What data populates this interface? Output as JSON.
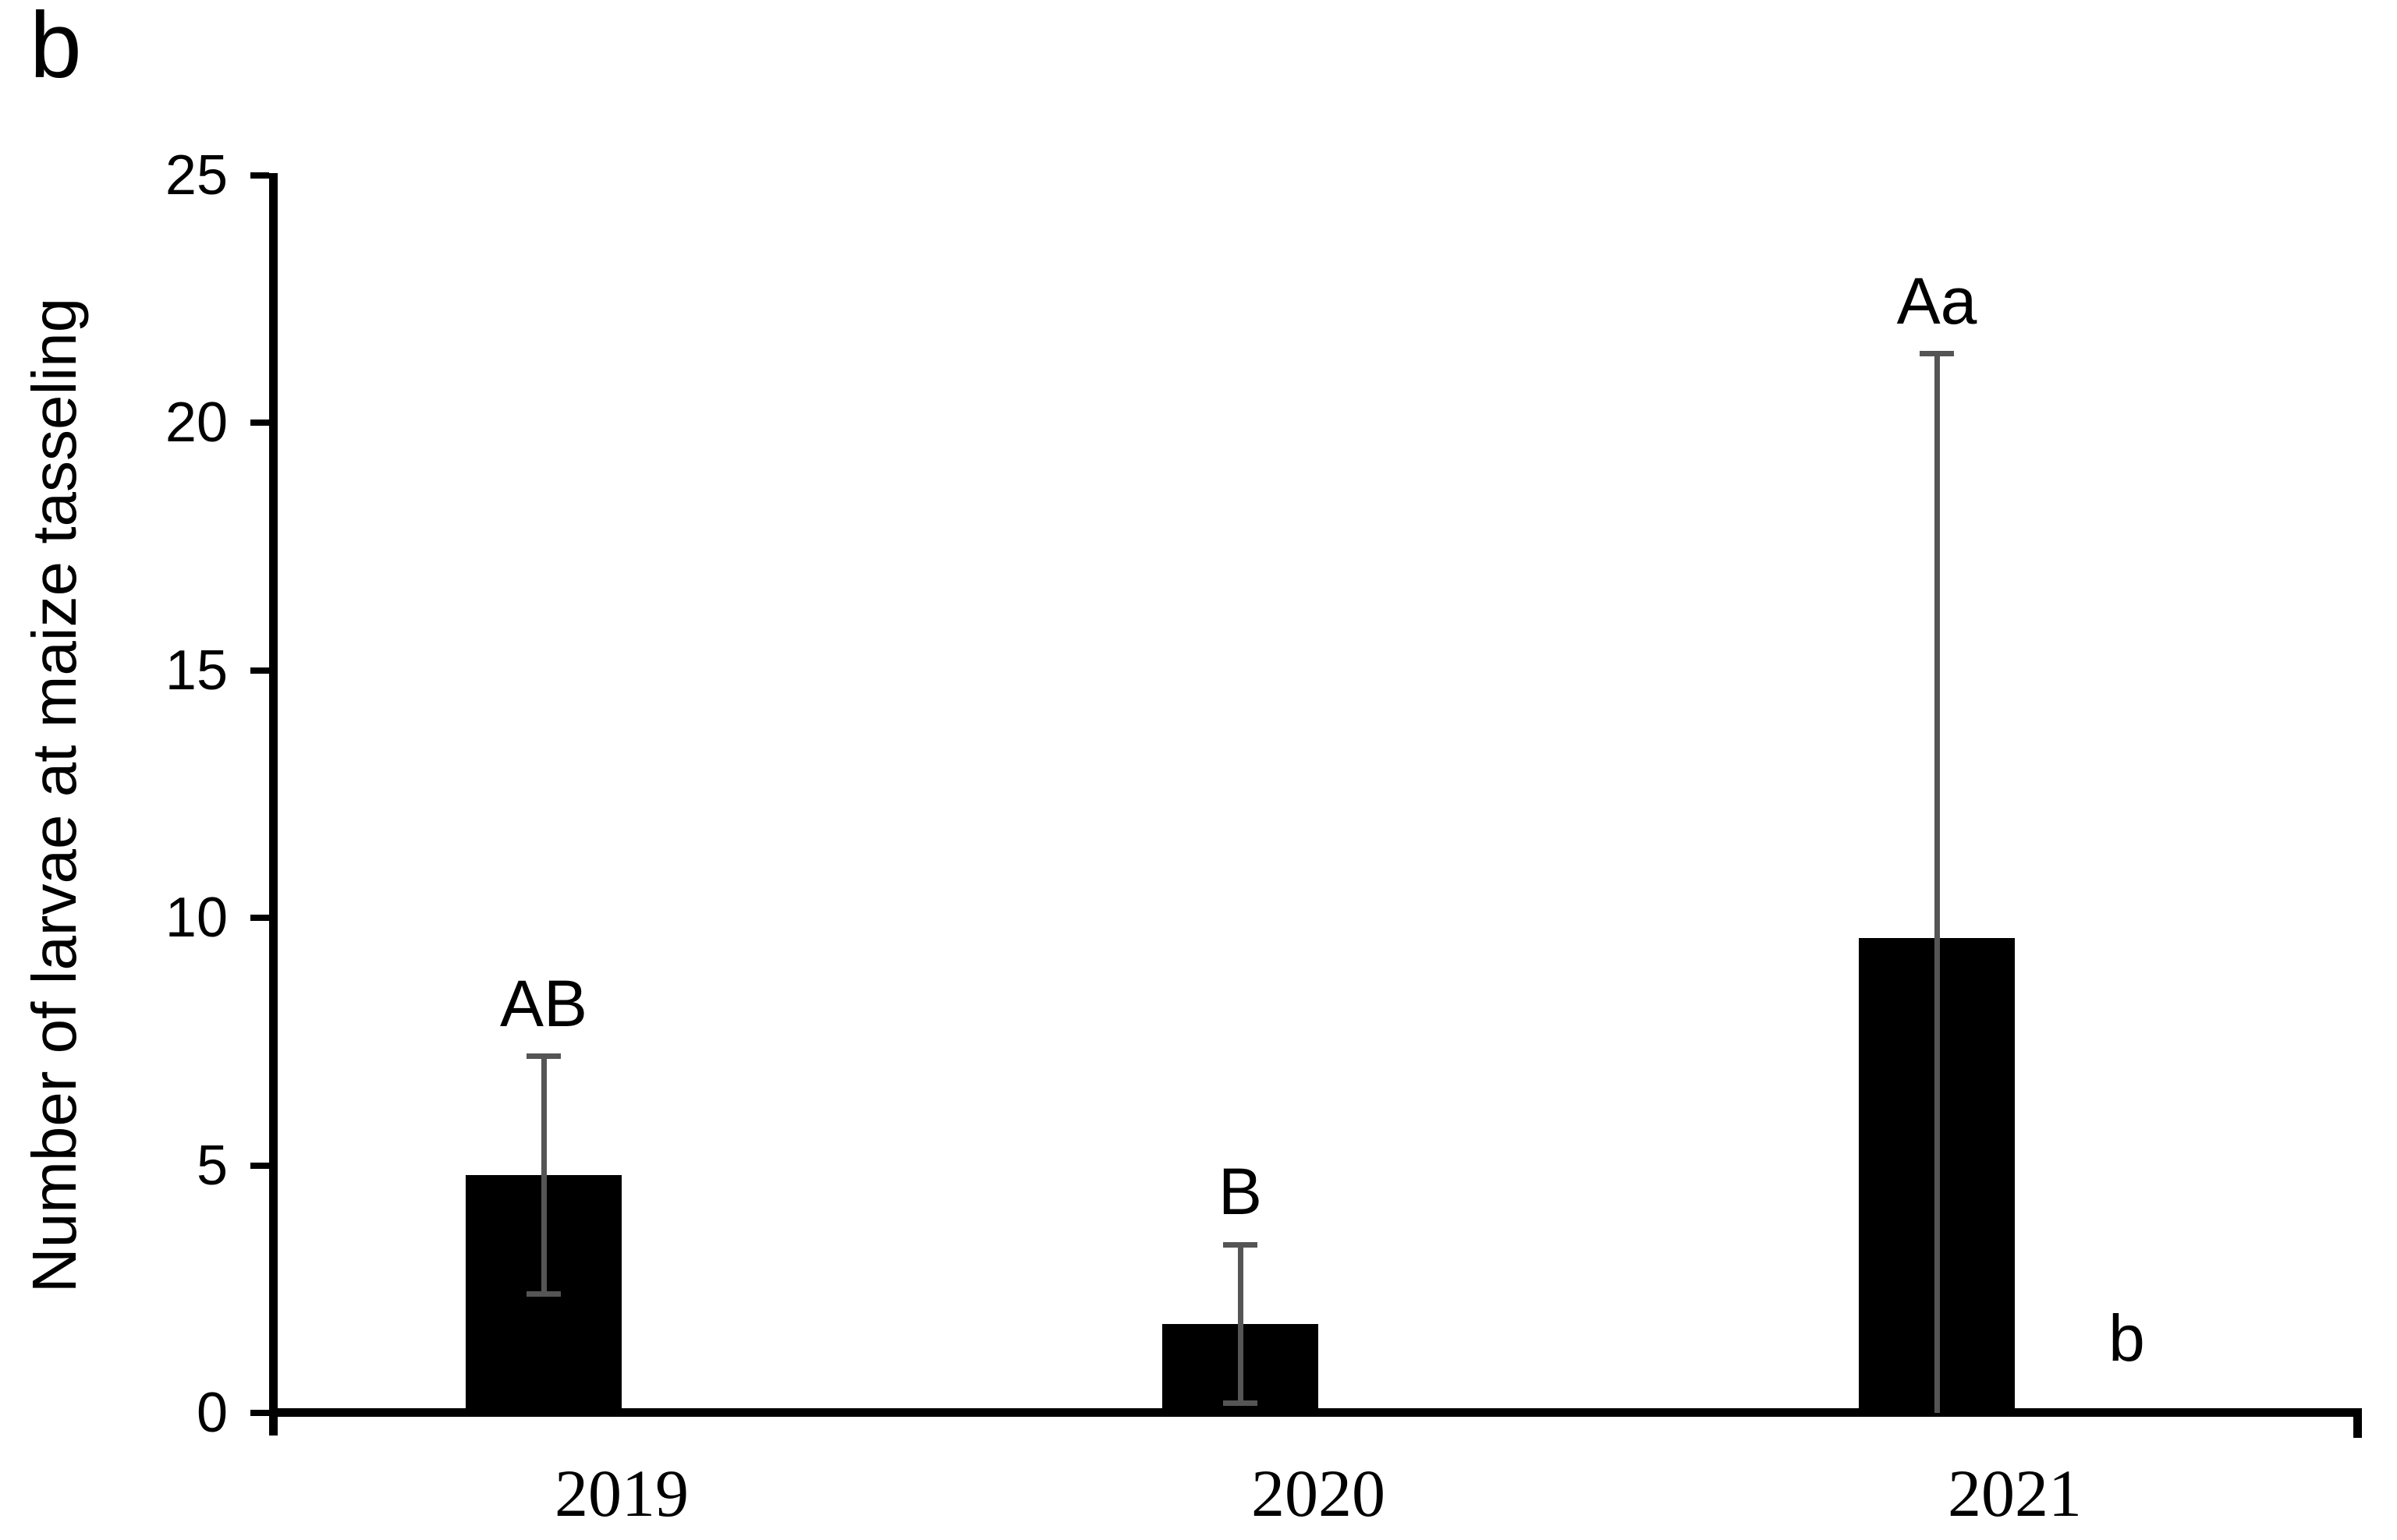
{
  "panel_label": "b",
  "y_axis": {
    "title": "Number of larvae at maize tasseling",
    "tick_labels": [
      "0",
      "5",
      "10",
      "15",
      "20",
      "25"
    ],
    "tick_values": [
      0,
      5,
      10,
      15,
      20,
      25
    ],
    "max": 25
  },
  "x_axis": {
    "categories": [
      "2019",
      "2020",
      "2021"
    ]
  },
  "colors": {
    "bar": "#000000",
    "error_bar": "#555555",
    "axis": "#000000"
  },
  "chart_data": {
    "type": "bar",
    "title": "",
    "xlabel": "",
    "ylabel": "Number of larvae at maize tasseling",
    "ylim": [
      0,
      25
    ],
    "grid": false,
    "legend_position": "none",
    "categories": [
      "2019",
      "2020",
      "2021"
    ],
    "series": [
      {
        "name": "series-1",
        "values": [
          4.8,
          1.8,
          9.6
        ],
        "error_low": [
          2.4,
          0.2,
          0
        ],
        "error_high": [
          7.2,
          3.4,
          21.4
        ],
        "sig_letters": [
          "AB",
          "B",
          "Aa"
        ]
      },
      {
        "name": "series-2",
        "values": [
          null,
          null,
          0.1
        ],
        "error_low": [
          null,
          null,
          null
        ],
        "error_high": [
          null,
          null,
          null
        ],
        "sig_letters": [
          null,
          null,
          "b"
        ]
      }
    ]
  }
}
